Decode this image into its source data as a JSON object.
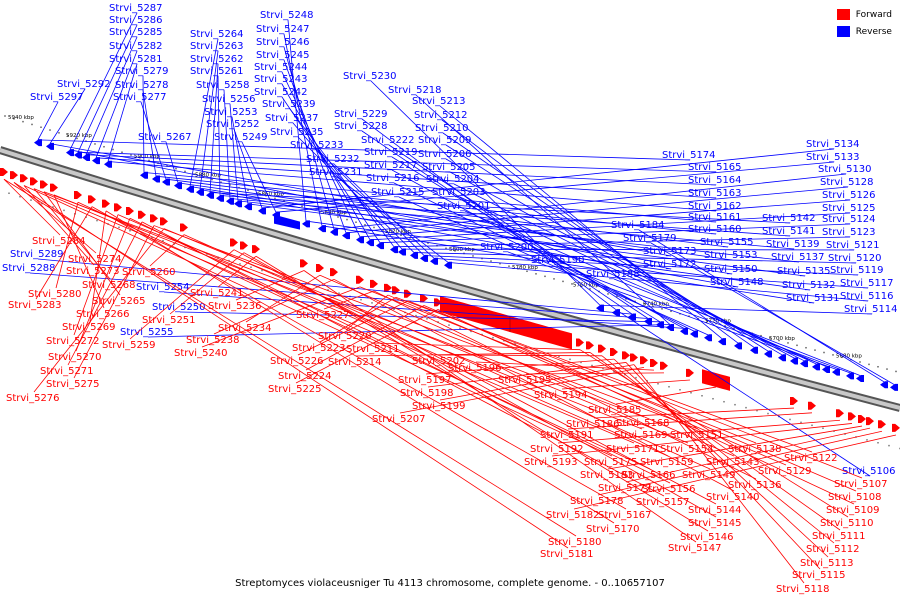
{
  "title": "Streptomyces violaceusniger Tu 4113 chromosome, complete genome. - 0..10657107",
  "legend": [
    {
      "label": "Forward",
      "color": "#ff0000"
    },
    {
      "label": "Reverse",
      "color": "#0000ff"
    }
  ],
  "colors": {
    "forward": "#ff0000",
    "reverse": "#0000ff",
    "backbone": "#666666"
  },
  "scale_ticks": [
    "5940 kbp",
    "5920 kbp",
    "5900 kbp",
    "5880 kbp",
    "5860 kbp",
    "5840 kbp",
    "5820 kbp",
    "5800 kbp",
    "5780 kbp",
    "5760 kbp",
    "5740 kbp",
    "5720 kbp",
    "5700 kbp",
    "5680 kbp"
  ],
  "reverse_genes": [
    "Strvi_5297",
    "Strvi_5292",
    "Strvi_5287",
    "Strvi_5286",
    "Strvi_5285",
    "Strvi_5282",
    "Strvi_5281",
    "Strvi_5279",
    "Strvi_5278",
    "Strvi_5277",
    "Strvi_5267",
    "Strvi_5264",
    "Strvi_5263",
    "Strvi_5262",
    "Strvi_5261",
    "Strvi_5258",
    "Strvi_5256",
    "Strvi_5253",
    "Strvi_5252",
    "Strvi_5249",
    "Strvi_5248",
    "Strvi_5247",
    "Strvi_5246",
    "Strvi_5245",
    "Strvi_5244",
    "Strvi_5243",
    "Strvi_5242",
    "Strvi_5239",
    "Strvi_5237",
    "Strvi_5235",
    "Strvi_5233",
    "Strvi_5232",
    "Strvi_5231",
    "Strvi_5230",
    "Strvi_5229",
    "Strvi_5228",
    "Strvi_5222",
    "Strvi_5219",
    "Strvi_5218",
    "Strvi_5217",
    "Strvi_5216",
    "Strvi_5215",
    "Strvi_5213",
    "Strvi_5212",
    "Strvi_5210",
    "Strvi_5209",
    "Strvi_5206",
    "Strvi_5205",
    "Strvi_5204",
    "Strvi_5203",
    "Strvi_5201",
    "Strvi_5200",
    "Strvi_5190",
    "Strvi_5188",
    "Strvi_5184",
    "Strvi_5179",
    "Strvi_5174",
    "Strvi_5173",
    "Strvi_5172",
    "Strvi_5165",
    "Strvi_5164",
    "Strvi_5163",
    "Strvi_5162",
    "Strvi_5161",
    "Strvi_5160",
    "Strvi_5155",
    "Strvi_5153",
    "Strvi_5150",
    "Strvi_5148",
    "Strvi_5142",
    "Strvi_5141",
    "Strvi_5139",
    "Strvi_5137",
    "Strvi_5135",
    "Strvi_5134",
    "Strvi_5133",
    "Strvi_5132",
    "Strvi_5131",
    "Strvi_5130",
    "Strvi_5128",
    "Strvi_5126",
    "Strvi_5125",
    "Strvi_5124",
    "Strvi_5123",
    "Strvi_5121",
    "Strvi_5120",
    "Strvi_5119",
    "Strvi_5117",
    "Strvi_5116",
    "Strvi_5114",
    "Strvi_5106",
    "Strvi_5289",
    "Strvi_5288",
    "Strvi_5250",
    "Strvi_5255",
    "Strvi_5254"
  ],
  "forward_genes": [
    "Strvi_5284",
    "Strvi_5274",
    "Strvi_5273",
    "Strvi_5268",
    "Strvi_5265",
    "Strvi_5266",
    "Strvi_5280",
    "Strvi_5283",
    "Strvi_5269",
    "Strvi_5272",
    "Strvi_5270",
    "Strvi_5271",
    "Strvi_5275",
    "Strvi_5276",
    "Strvi_5260",
    "Strvi_5259",
    "Strvi_5251",
    "Strvi_5241",
    "Strvi_5236",
    "Strvi_5234",
    "Strvi_5238",
    "Strvi_5240",
    "Strvi_5227",
    "Strvi_5220",
    "Strvi_5223",
    "Strvi_5226",
    "Strvi_5224",
    "Strvi_5225",
    "Strvi_5211",
    "Strvi_5214",
    "Strvi_5202",
    "Strvi_5197",
    "Strvi_5198",
    "Strvi_5199",
    "Strvi_5207",
    "Strvi_5196",
    "Strvi_5195",
    "Strvi_5194",
    "Strvi_5185",
    "Strvi_5186",
    "Strvi_5191",
    "Strvi_5192",
    "Strvi_5193",
    "Strvi_5183",
    "Strvi_5177",
    "Strvi_5178",
    "Strvi_5182",
    "Strvi_5180",
    "Strvi_5181",
    "Strvi_5175",
    "Strvi_5171",
    "Strvi_5168",
    "Strvi_5169",
    "Strvi_5166",
    "Strvi_5167",
    "Strvi_5170",
    "Strvi_5159",
    "Strvi_5156",
    "Strvi_5157",
    "Strvi_5151",
    "Strvi_5154",
    "Strvi_5149",
    "Strvi_5144",
    "Strvi_5145",
    "Strvi_5146",
    "Strvi_5147",
    "Strvi_5143",
    "Strvi_5140",
    "Strvi_5138",
    "Strvi_5136",
    "Strvi_5129",
    "Strvi_5122",
    "Strvi_5107",
    "Strvi_5108",
    "Strvi_5109",
    "Strvi_5110",
    "Strvi_5111",
    "Strvi_5112",
    "Strvi_5113",
    "Strvi_5115",
    "Strvi_5118"
  ]
}
